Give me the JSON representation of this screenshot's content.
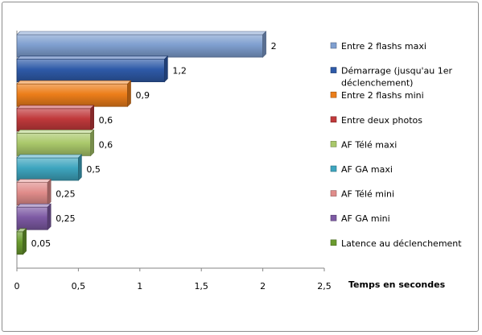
{
  "chart_data": {
    "type": "bar",
    "orientation": "horizontal",
    "style": "3d",
    "xlabel": "Temps en secondes",
    "ylabel": "",
    "xlim": [
      0,
      2.5
    ],
    "xticks": [
      "0",
      "0,5",
      "1",
      "1,5",
      "2",
      "2,5"
    ],
    "legend_position": "right",
    "grid": false,
    "categories": [
      "Entre 2 flashs maxi",
      "Démarrage (jusqu'au 1er déclenchement)",
      "Entre 2 flashs mini",
      "Entre deux photos",
      "AF Télé maxi",
      "AF GA maxi",
      "AF Télé mini",
      "AF GA mini",
      "Latence au déclenchement"
    ],
    "legend_lines": [
      [
        "Entre 2 flashs maxi"
      ],
      [
        "Démarrage (jusqu'au 1er",
        "déclenchement)"
      ],
      [
        "Entre 2 flashs mini"
      ],
      [
        "Entre deux photos"
      ],
      [
        "AF Télé maxi"
      ],
      [
        "AF GA maxi"
      ],
      [
        "AF Télé mini"
      ],
      [
        "AF GA mini"
      ],
      [
        "Latence au déclenchement"
      ]
    ],
    "values": [
      2,
      1.2,
      0.9,
      0.6,
      0.6,
      0.5,
      0.25,
      0.25,
      0.05
    ],
    "value_labels": [
      "2",
      "1,2",
      "0,9",
      "0,6",
      "0,6",
      "0,5",
      "0,25",
      "0,25",
      "0,05"
    ],
    "colors": [
      "#7f9fd0",
      "#2e5aa8",
      "#ec7e1a",
      "#c0393b",
      "#a9c86a",
      "#3ea5bf",
      "#e08c8a",
      "#7d5aa4",
      "#6a9b2e"
    ]
  }
}
